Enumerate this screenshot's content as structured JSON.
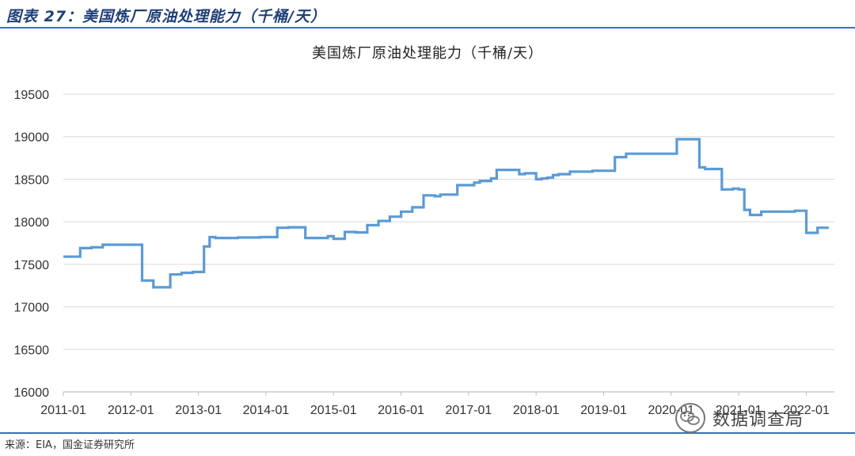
{
  "figure": {
    "header": "图表 27：美国炼厂原油处理能力（千桶/天）",
    "source": "来源：EIA，国金证券研究所",
    "watermark": "数据调查局"
  },
  "colors": {
    "line": "#5b9bd5",
    "grid": "#d9d9d9",
    "axis": "#bfbfbf",
    "accent": "#3b6fb6"
  },
  "icons": {
    "watermark": "wechat-channel-icon"
  },
  "chart_data": {
    "type": "line",
    "title": "美国炼厂原油处理能力（千桶/天）",
    "xlabel": "",
    "ylabel": "",
    "ylim": [
      16000,
      19500
    ],
    "yticks": [
      16000,
      16500,
      17000,
      17500,
      18000,
      18500,
      19000,
      19500
    ],
    "xticks": [
      "2011-01",
      "2012-01",
      "2013-01",
      "2014-01",
      "2015-01",
      "2016-01",
      "2017-01",
      "2018-01",
      "2019-01",
      "2020-01",
      "2021-01",
      "2022-01"
    ],
    "grid": true,
    "step": true,
    "series": [
      {
        "name": "",
        "points": [
          [
            "2011-01",
            17590
          ],
          [
            "2011-04",
            17690
          ],
          [
            "2011-06",
            17700
          ],
          [
            "2011-08",
            17730
          ],
          [
            "2012-03",
            17310
          ],
          [
            "2012-05",
            17230
          ],
          [
            "2012-08",
            17380
          ],
          [
            "2012-10",
            17400
          ],
          [
            "2012-12",
            17410
          ],
          [
            "2013-02",
            17710
          ],
          [
            "2013-03",
            17820
          ],
          [
            "2013-04",
            17810
          ],
          [
            "2013-08",
            17815
          ],
          [
            "2013-12",
            17820
          ],
          [
            "2014-03",
            17930
          ],
          [
            "2014-05",
            17935
          ],
          [
            "2014-08",
            17810
          ],
          [
            "2014-12",
            17830
          ],
          [
            "2015-01",
            17800
          ],
          [
            "2015-03",
            17880
          ],
          [
            "2015-05",
            17875
          ],
          [
            "2015-07",
            17960
          ],
          [
            "2015-09",
            18010
          ],
          [
            "2015-11",
            18060
          ],
          [
            "2016-01",
            18120
          ],
          [
            "2016-03",
            18170
          ],
          [
            "2016-05",
            18310
          ],
          [
            "2016-07",
            18300
          ],
          [
            "2016-08",
            18320
          ],
          [
            "2016-11",
            18430
          ],
          [
            "2017-02",
            18460
          ],
          [
            "2017-03",
            18480
          ],
          [
            "2017-05",
            18510
          ],
          [
            "2017-06",
            18610
          ],
          [
            "2017-10",
            18560
          ],
          [
            "2017-11",
            18570
          ],
          [
            "2018-01",
            18500
          ],
          [
            "2018-02",
            18510
          ],
          [
            "2018-03",
            18520
          ],
          [
            "2018-04",
            18550
          ],
          [
            "2018-05",
            18560
          ],
          [
            "2018-07",
            18590
          ],
          [
            "2018-11",
            18600
          ],
          [
            "2019-03",
            18760
          ],
          [
            "2019-05",
            18800
          ],
          [
            "2020-02",
            18970
          ],
          [
            "2020-06",
            18640
          ],
          [
            "2020-07",
            18620
          ],
          [
            "2020-10",
            18380
          ],
          [
            "2020-12",
            18390
          ],
          [
            "2021-01",
            18380
          ],
          [
            "2021-02",
            18140
          ],
          [
            "2021-03",
            18080
          ],
          [
            "2021-05",
            18120
          ],
          [
            "2021-11",
            18130
          ],
          [
            "2022-01",
            17870
          ],
          [
            "2022-03",
            17930
          ],
          [
            "2022-05",
            17930
          ]
        ]
      }
    ]
  }
}
